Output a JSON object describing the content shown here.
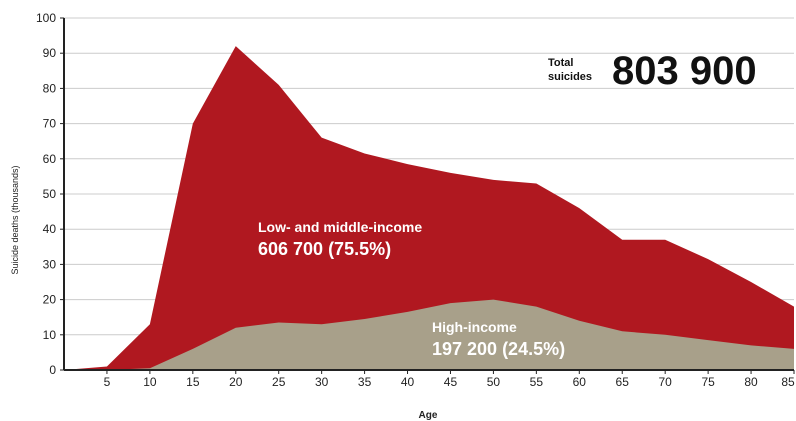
{
  "chart_data": {
    "type": "area",
    "stacked": true,
    "xlabel": "Age",
    "ylabel": "Suicide deaths (thousands)",
    "ylim": [
      0,
      100
    ],
    "xlim": [
      0,
      85
    ],
    "yticks": [
      "0",
      "10",
      "20",
      "30",
      "40",
      "50",
      "60",
      "70",
      "80",
      "90",
      "100"
    ],
    "xticks": [
      {
        "x": 5,
        "label": "5"
      },
      {
        "x": 10,
        "label": "10"
      },
      {
        "x": 15,
        "label": "15"
      },
      {
        "x": 20,
        "label": "20"
      },
      {
        "x": 25,
        "label": "25"
      },
      {
        "x": 30,
        "label": "30"
      },
      {
        "x": 35,
        "label": "35"
      },
      {
        "x": 40,
        "label": "40"
      },
      {
        "x": 45,
        "label": "45"
      },
      {
        "x": 50,
        "label": "50"
      },
      {
        "x": 55,
        "label": "55"
      },
      {
        "x": 60,
        "label": "60"
      },
      {
        "x": 65,
        "label": "65"
      },
      {
        "x": 70,
        "label": "70"
      },
      {
        "x": 75,
        "label": "75"
      },
      {
        "x": 80,
        "label": "80"
      },
      {
        "x": 85,
        "label": "85"
      }
    ],
    "grid": true,
    "x": [
      0,
      5,
      10,
      15,
      20,
      25,
      30,
      35,
      40,
      45,
      50,
      55,
      60,
      65,
      70,
      75,
      80,
      85
    ],
    "series": [
      {
        "name": "High-income",
        "color": "#a8a08a",
        "values": [
          0,
          0,
          0.5,
          6,
          12,
          13.5,
          13,
          14.5,
          16.5,
          19,
          20,
          18,
          14,
          11,
          10,
          8.5,
          7,
          6
        ]
      },
      {
        "name": "Low- and middle-income",
        "color": "#b01820",
        "total_values": [
          0,
          1,
          13,
          70,
          92,
          81,
          66,
          61.5,
          58.5,
          56,
          54,
          53,
          46,
          37,
          37,
          31.5,
          25,
          18
        ]
      }
    ],
    "annotations": {
      "low_middle_title": "Low- and middle-income",
      "low_middle_value": "606 700 (75.5%)",
      "high_title": "High-income",
      "high_value": "197 200 (24.5%)",
      "total_label_line1": "Total",
      "total_label_line2": "suicides",
      "total_value": "803 900"
    },
    "colors": {
      "high_income": "#a8a08a",
      "low_middle_income": "#b01820",
      "grid": "#cccccc",
      "axis": "#222222"
    }
  }
}
